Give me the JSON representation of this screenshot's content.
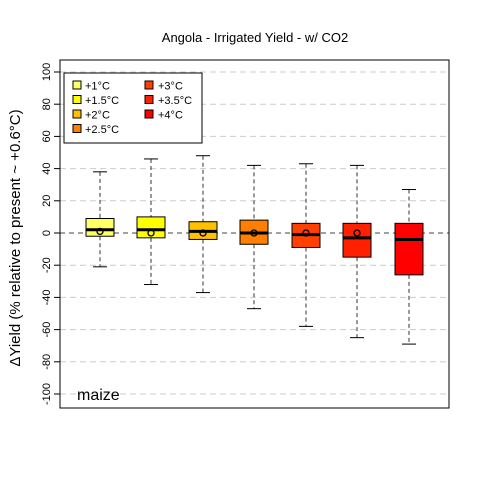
{
  "chart_data": {
    "type": "boxplot",
    "title": "Angola - Irrigated Yield - w/ CO2",
    "ylabel": "ΔYield (% relative to present ~ +0.6°C)",
    "xlabel": "",
    "crop_label": "maize",
    "ylim": [
      -105,
      105
    ],
    "yticks": [
      -100,
      -80,
      -60,
      -40,
      -20,
      0,
      20,
      40,
      60,
      80,
      100
    ],
    "grid": "horizontal dashed",
    "zero_line": "dashed",
    "legend_position": "top-left",
    "series": [
      {
        "name": "+1°C",
        "color": "#FFFF66",
        "whisker_low": -21,
        "q1": -2,
        "median": 2,
        "q3": 9,
        "whisker_high": 38,
        "mean": 1
      },
      {
        "name": "+1.5°C",
        "color": "#FFFF00",
        "whisker_low": -32,
        "q1": -3,
        "median": 2,
        "q3": 10,
        "whisker_high": 46,
        "mean": 0
      },
      {
        "name": "+2°C",
        "color": "#FFC000",
        "whisker_low": -37,
        "q1": -4,
        "median": 1,
        "q3": 7,
        "whisker_high": 48,
        "mean": 0
      },
      {
        "name": "+2.5°C",
        "color": "#FF8000",
        "whisker_low": -47,
        "q1": -7,
        "median": 0,
        "q3": 8,
        "whisker_high": 42,
        "mean": 0
      },
      {
        "name": "+3°C",
        "color": "#FF4000",
        "whisker_low": -58,
        "q1": -9,
        "median": -1,
        "q3": 6,
        "whisker_high": 43,
        "mean": 0
      },
      {
        "name": "+3.5°C",
        "color": "#FF2000",
        "whisker_low": -65,
        "q1": -15,
        "median": -3,
        "q3": 6,
        "whisker_high": 42,
        "mean": 0
      },
      {
        "name": "+4°C",
        "color": "#FF0000",
        "whisker_low": -69,
        "q1": -26,
        "median": -4,
        "q3": 6,
        "whisker_high": 27,
        "mean": null
      }
    ]
  }
}
